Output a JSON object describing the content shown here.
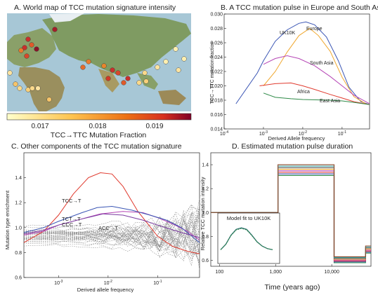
{
  "colors": {
    "uk10k": "#3a55b4",
    "europe": "#f0a830",
    "south_asia": "#b545b5",
    "africa": "#e03a2e",
    "east_asia": "#2f8a48",
    "grey": "#8c8c8c"
  },
  "panelA": {
    "title": "A. World map of TCC mutation signature intensity",
    "colorbar_label": "TCC→TTC Mutation Fraction",
    "colorbar_ticks": [
      "0.017",
      "0.018",
      "0.019"
    ]
  },
  "chart_data": [
    {
      "id": "B",
      "type": "line",
      "title": "B. A TCC mutation pulse in Europe and South Asia",
      "xlabel": "Derived Allele frequency",
      "ylabel": "TCC→TTC mutation fraction",
      "x_scale": "log",
      "xlim": [
        0.0001,
        0.5
      ],
      "ylim": [
        0.014,
        0.03
      ],
      "x_ticks": [
        "10^-4",
        "10^-3",
        "10^-2",
        "10^-1"
      ],
      "y_ticks": [
        "0.014",
        "0.016",
        "0.018",
        "0.020",
        "0.022",
        "0.024",
        "0.026",
        "0.028",
        "0.030"
      ],
      "series": [
        {
          "name": "UK10K",
          "color": "#3a55b4",
          "x": [
            0.0002,
            0.0007,
            0.001,
            0.002,
            0.004,
            0.008,
            0.012,
            0.02,
            0.04,
            0.08,
            0.15,
            0.3,
            0.5
          ],
          "y": [
            0.0175,
            0.0218,
            0.0235,
            0.0262,
            0.0278,
            0.0287,
            0.0289,
            0.0285,
            0.0268,
            0.0235,
            0.0198,
            0.0178,
            0.0174
          ]
        },
        {
          "name": "Europe",
          "color": "#f0a830",
          "x": [
            0.001,
            0.002,
            0.004,
            0.008,
            0.015,
            0.025,
            0.05,
            0.1,
            0.2,
            0.4,
            0.5
          ],
          "y": [
            0.02,
            0.022,
            0.0247,
            0.027,
            0.028,
            0.027,
            0.0248,
            0.0212,
            0.0185,
            0.0175,
            0.0174
          ]
        },
        {
          "name": "South Asia",
          "color": "#b545b5",
          "x": [
            0.001,
            0.002,
            0.004,
            0.008,
            0.02,
            0.05,
            0.1,
            0.2,
            0.5
          ],
          "y": [
            0.023,
            0.0238,
            0.0242,
            0.0238,
            0.0228,
            0.0213,
            0.02,
            0.0187,
            0.0175
          ]
        },
        {
          "name": "Africa",
          "color": "#e03a2e",
          "x": [
            0.0008,
            0.002,
            0.005,
            0.01,
            0.02,
            0.05,
            0.1,
            0.2,
            0.5
          ],
          "y": [
            0.02,
            0.0203,
            0.0204,
            0.02,
            0.0195,
            0.0188,
            0.0183,
            0.0178,
            0.0174
          ]
        },
        {
          "name": "East Asia",
          "color": "#2f8a48",
          "x": [
            0.001,
            0.002,
            0.005,
            0.01,
            0.05,
            0.1,
            0.2,
            0.5
          ],
          "y": [
            0.019,
            0.0184,
            0.0182,
            0.0181,
            0.018,
            0.0179,
            0.0177,
            0.0174
          ]
        }
      ]
    },
    {
      "id": "C",
      "type": "line",
      "title": "C. Other components of the TCC mutation signature",
      "xlabel": "Derived allele frequency",
      "ylabel": "Mutation type enrichment",
      "x_scale": "log",
      "xlim": [
        0.0002,
        0.7
      ],
      "ylim": [
        0.6,
        1.6
      ],
      "x_ticks": [
        "10^-3",
        "10^-2",
        "10^-1"
      ],
      "y_ticks": [
        "0.6",
        "0.8",
        "1.0",
        "1.2",
        "1.4"
      ],
      "series": [
        {
          "name": "TCC→T",
          "color": "#e03a2e",
          "x": [
            0.0002,
            0.0005,
            0.001,
            0.002,
            0.004,
            0.007,
            0.012,
            0.02,
            0.04,
            0.1,
            0.2,
            0.4,
            0.7
          ],
          "y": [
            0.88,
            0.97,
            1.1,
            1.27,
            1.4,
            1.44,
            1.43,
            1.33,
            1.13,
            0.93,
            0.85,
            0.81,
            0.79
          ]
        },
        {
          "name": "ACC→T",
          "color": "#b545b5",
          "x": [
            0.0002,
            0.0005,
            0.001,
            0.003,
            0.007,
            0.02,
            0.05,
            0.1,
            0.2,
            0.4,
            0.7
          ],
          "y": [
            0.94,
            0.97,
            1.02,
            1.07,
            1.11,
            1.13,
            1.12,
            1.08,
            1.03,
            0.97,
            0.9
          ]
        },
        {
          "name": "TCT→T",
          "color": "#3a55b4",
          "x": [
            0.0002,
            0.0005,
            0.001,
            0.003,
            0.006,
            0.012,
            0.03,
            0.07,
            0.15,
            0.3,
            0.7
          ],
          "y": [
            0.96,
            1.0,
            1.05,
            1.12,
            1.16,
            1.17,
            1.14,
            1.1,
            1.06,
            1.0,
            0.88
          ]
        },
        {
          "name": "CCC→T",
          "color": "#7a3aa0",
          "x": [
            0.0002,
            0.0005,
            0.001,
            0.003,
            0.008,
            0.02,
            0.05,
            0.1,
            0.3,
            0.7
          ],
          "y": [
            0.95,
            0.98,
            1.02,
            1.07,
            1.11,
            1.1,
            1.06,
            1.02,
            0.96,
            0.92
          ]
        }
      ]
    },
    {
      "id": "D",
      "type": "line",
      "title": "D. Estimated mutation pulse duration",
      "xlabel": "Time (years ago)",
      "ylabel": "Relative TCC mutation intensity",
      "x_scale": "log",
      "xlim": [
        70,
        50000
      ],
      "ylim": [
        0.55,
        1.5
      ],
      "x_ticks": [
        "100",
        "1,000",
        "10,000"
      ],
      "y_ticks": [
        "0.6",
        "0.8",
        "1.0",
        "1.2",
        "1.4"
      ],
      "steps": {
        "x": [
          70,
          1100,
          1100,
          11000,
          11000,
          40000,
          40000,
          50000
        ],
        "levels_top": [
          1.0,
          1.0,
          1.4,
          1.4,
          0.63,
          0.63,
          0.72,
          0.72
        ],
        "levels_bottom": [
          1.0,
          1.0,
          1.31,
          1.31,
          0.58,
          0.58,
          0.66,
          0.66
        ]
      },
      "inset": {
        "title": "Model fit to UK10K",
        "x": [
          0.0,
          0.1,
          0.2,
          0.3,
          0.4,
          0.5,
          0.6,
          0.7,
          0.8,
          0.9,
          1.0
        ],
        "y": [
          0.3,
          0.45,
          0.7,
          0.86,
          0.9,
          0.86,
          0.7,
          0.52,
          0.4,
          0.33,
          0.3
        ]
      }
    }
  ]
}
